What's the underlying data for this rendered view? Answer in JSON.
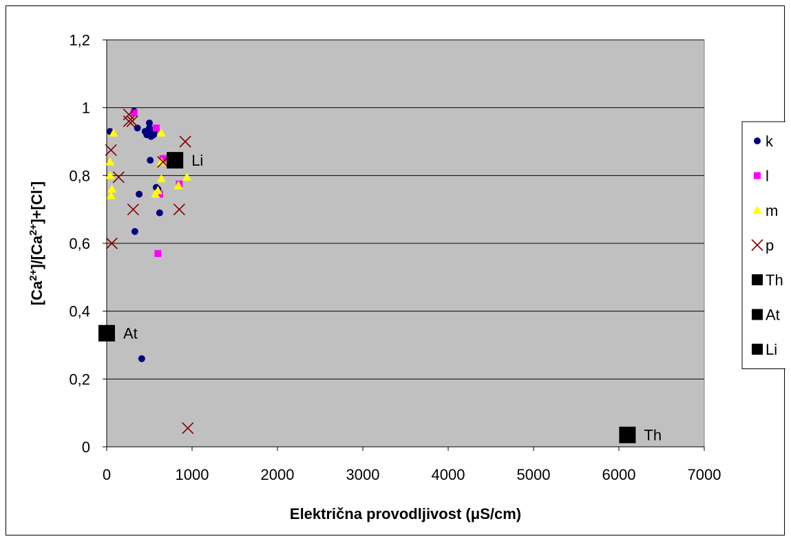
{
  "chart_data": {
    "type": "scatter",
    "title": "",
    "xlabel": "Električna provodljivost (μS/cm)",
    "ylabel_parts": [
      "[Ca",
      "2+",
      "]/[Ca",
      "2+",
      "]+[Cl",
      "-",
      "]"
    ],
    "xlim": [
      0,
      7000
    ],
    "ylim": [
      0,
      1.2
    ],
    "x_ticks": [
      0,
      1000,
      2000,
      3000,
      4000,
      5000,
      6000,
      7000
    ],
    "x_tick_labels": [
      "0",
      "1000",
      "2000",
      "3000",
      "4000",
      "5000",
      "6000",
      "7000"
    ],
    "y_ticks": [
      0,
      0.2,
      0.4,
      0.6,
      0.8,
      1.0,
      1.2
    ],
    "y_tick_labels": [
      "0",
      "0,2",
      "0,4",
      "0,6",
      "0,8",
      "1",
      "1,2"
    ],
    "grid": "horizontal",
    "plot_background": "#c0c0c0",
    "legend_position": "right",
    "series": [
      {
        "name": "k",
        "marker": "circle",
        "color": "#000080",
        "points": [
          [
            40,
            0.93
          ],
          [
            320,
            0.99
          ],
          [
            360,
            0.94
          ],
          [
            450,
            0.93
          ],
          [
            470,
            0.92
          ],
          [
            500,
            0.955
          ],
          [
            500,
            0.94
          ],
          [
            510,
            0.93
          ],
          [
            520,
            0.915
          ],
          [
            550,
            0.92
          ],
          [
            560,
            0.93
          ],
          [
            510,
            0.845
          ],
          [
            580,
            0.765
          ],
          [
            600,
            0.76
          ],
          [
            380,
            0.745
          ],
          [
            620,
            0.69
          ],
          [
            330,
            0.635
          ],
          [
            410,
            0.26
          ]
        ]
      },
      {
        "name": "l",
        "marker": "square",
        "color": "#ff00ff",
        "points": [
          [
            320,
            0.985
          ],
          [
            580,
            0.94
          ],
          [
            660,
            0.85
          ],
          [
            620,
            0.745
          ],
          [
            850,
            0.775
          ],
          [
            600,
            0.57
          ]
        ]
      },
      {
        "name": "m",
        "marker": "triangle",
        "color": "#ffff00",
        "points": [
          [
            80,
            0.925
          ],
          [
            40,
            0.84
          ],
          [
            40,
            0.8
          ],
          [
            60,
            0.76
          ],
          [
            50,
            0.74
          ],
          [
            640,
            0.925
          ],
          [
            640,
            0.84
          ],
          [
            640,
            0.79
          ],
          [
            600,
            0.755
          ],
          [
            570,
            0.745
          ],
          [
            840,
            0.77
          ],
          [
            940,
            0.795
          ]
        ]
      },
      {
        "name": "p",
        "marker": "x",
        "color": "#800000",
        "points": [
          [
            260,
            0.98
          ],
          [
            260,
            0.96
          ],
          [
            300,
            0.96
          ],
          [
            50,
            0.875
          ],
          [
            140,
            0.795
          ],
          [
            660,
            0.84
          ],
          [
            920,
            0.9
          ],
          [
            310,
            0.7
          ],
          [
            850,
            0.7
          ],
          [
            60,
            0.6
          ],
          [
            950,
            0.055
          ]
        ]
      },
      {
        "name": "Th",
        "marker": "bigsquare",
        "color": "#000000",
        "label": "Th",
        "points": [
          [
            6100,
            0.035
          ]
        ]
      },
      {
        "name": "At",
        "marker": "bigsquare",
        "color": "#000000",
        "label": "At",
        "points": [
          [
            0,
            0.335
          ]
        ]
      },
      {
        "name": "Li",
        "marker": "bigsquare",
        "color": "#000000",
        "label": "Li",
        "points": [
          [
            800,
            0.845
          ]
        ]
      }
    ]
  }
}
